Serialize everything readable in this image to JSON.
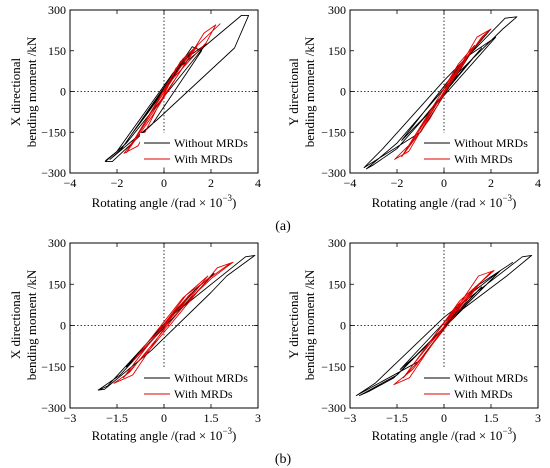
{
  "figure": {
    "panel_labels": [
      "(a)",
      "(b)"
    ]
  },
  "colors": {
    "without": "#000000",
    "with": "#e00000",
    "axis": "#000000"
  },
  "chart_data": [
    {
      "type": "line",
      "xlabel": "Rotating angle /(rad × 10",
      "xlabel_sup": "−3",
      "xlabel_close": ")",
      "ylabel_line1": "X directional",
      "ylabel_line2": "bending moment /kN",
      "xlim": [
        -4,
        4
      ],
      "ylim": [
        -300,
        300
      ],
      "xticks": [
        -4,
        -2,
        0,
        2,
        4
      ],
      "xtick_labels": [
        "−4",
        "−2",
        "0",
        "2",
        "4"
      ],
      "yticks": [
        -300,
        -150,
        0,
        150,
        300
      ],
      "ytick_labels": [
        "−300",
        "−150",
        "0",
        "150",
        "300"
      ],
      "legend_position": "bottom-right",
      "series": [
        {
          "name": "Without MRDs",
          "color": "#000000",
          "points": [
            [
              0,
              0
            ],
            [
              0.6,
              90
            ],
            [
              1.2,
              150
            ],
            [
              -0.7,
              -80
            ],
            [
              -1.4,
              -160
            ],
            [
              0.9,
              120
            ],
            [
              1.8,
              175
            ],
            [
              -1.6,
              -190
            ],
            [
              -2.5,
              -258
            ],
            [
              -2.2,
              -258
            ],
            [
              -0.5,
              -120
            ],
            [
              1.6,
              150
            ],
            [
              1.2,
              165
            ],
            [
              -1.8,
              -210
            ],
            [
              -2.3,
              -250
            ],
            [
              -0.3,
              -105
            ],
            [
              3.0,
              160
            ],
            [
              3.6,
              280
            ],
            [
              3.3,
              280
            ],
            [
              0.4,
              70
            ],
            [
              -2.0,
              -220
            ],
            [
              -2.5,
              -255
            ]
          ]
        },
        {
          "name": "With MRDs",
          "color": "#e00000",
          "points": [
            [
              0,
              0
            ],
            [
              0.5,
              85
            ],
            [
              1.0,
              130
            ],
            [
              -0.5,
              -70
            ],
            [
              -1.0,
              -140
            ],
            [
              0.7,
              110
            ],
            [
              1.4,
              165
            ],
            [
              -1.2,
              -170
            ],
            [
              -1.7,
              -228
            ],
            [
              -1.1,
              -200
            ],
            [
              0.3,
              40
            ],
            [
              1.8,
              180
            ],
            [
              2.2,
              245
            ],
            [
              1.7,
              215
            ],
            [
              -0.5,
              -90
            ],
            [
              -1.6,
              -225
            ],
            [
              0.8,
              120
            ],
            [
              2.4,
              250
            ]
          ]
        }
      ]
    },
    {
      "type": "line",
      "xlabel": "Rotating angle /(rad × 10",
      "xlabel_sup": "−3",
      "xlabel_close": ")",
      "ylabel_line1": "Y directional",
      "ylabel_line2": "bending moment /kN",
      "xlim": [
        -4,
        4
      ],
      "ylim": [
        -300,
        300
      ],
      "xticks": [
        -4,
        -2,
        0,
        2,
        4
      ],
      "xtick_labels": [
        "−4",
        "−2",
        "0",
        "2",
        "4"
      ],
      "yticks": [
        -300,
        -150,
        0,
        150,
        300
      ],
      "ytick_labels": [
        "−300",
        "−150",
        "0",
        "150",
        "300"
      ],
      "legend_position": "bottom-right",
      "series": [
        {
          "name": "Without MRDs",
          "color": "#000000",
          "points": [
            [
              0,
              0
            ],
            [
              0.8,
              80
            ],
            [
              1.6,
              160
            ],
            [
              -0.9,
              -100
            ],
            [
              -1.8,
              -180
            ],
            [
              1.0,
              130
            ],
            [
              2.2,
              200
            ],
            [
              -2.0,
              -210
            ],
            [
              -3.0,
              -270
            ],
            [
              -3.3,
              -285
            ],
            [
              -2.0,
              -190
            ],
            [
              0.5,
              60
            ],
            [
              2.5,
              230
            ],
            [
              3.1,
              275
            ],
            [
              2.6,
              270
            ],
            [
              0,
              40
            ],
            [
              -2.6,
              -210
            ],
            [
              -3.4,
              -280
            ],
            [
              -1.0,
              -150
            ],
            [
              1.2,
              150
            ],
            [
              2.0,
              230
            ]
          ]
        },
        {
          "name": "With MRDs",
          "color": "#e00000",
          "points": [
            [
              0,
              0
            ],
            [
              0.4,
              60
            ],
            [
              0.9,
              110
            ],
            [
              -0.5,
              -70
            ],
            [
              -1.1,
              -150
            ],
            [
              0.6,
              100
            ],
            [
              1.3,
              170
            ],
            [
              -1.4,
              -190
            ],
            [
              -2.1,
              -250
            ],
            [
              -1.5,
              -220
            ],
            [
              0.2,
              30
            ],
            [
              1.6,
              200
            ],
            [
              2.0,
              230
            ],
            [
              1.4,
              200
            ],
            [
              -0.6,
              -100
            ],
            [
              -1.8,
              -240
            ],
            [
              0.5,
              80
            ],
            [
              1.9,
              225
            ]
          ]
        }
      ]
    },
    {
      "type": "line",
      "xlabel": "Rotating angle /(rad × 10",
      "xlabel_sup": "−3",
      "xlabel_close": ")",
      "ylabel_line1": "X directional",
      "ylabel_line2": "bending moment /kN",
      "xlim": [
        -3,
        3
      ],
      "ylim": [
        -300,
        300
      ],
      "xticks": [
        -3,
        -1.5,
        0,
        1.5,
        3
      ],
      "xtick_labels": [
        "−3",
        "−1.5",
        "0",
        "1.5",
        "3"
      ],
      "yticks": [
        -300,
        -150,
        0,
        150,
        300
      ],
      "ytick_labels": [
        "−300",
        "−150",
        "0",
        "150",
        "300"
      ],
      "legend_position": "bottom-right",
      "series": [
        {
          "name": "Without MRDs",
          "color": "#000000",
          "points": [
            [
              0,
              0
            ],
            [
              0.5,
              70
            ],
            [
              1.0,
              130
            ],
            [
              -0.6,
              -80
            ],
            [
              -1.2,
              -150
            ],
            [
              0.8,
              110
            ],
            [
              1.6,
              190
            ],
            [
              -1.4,
              -180
            ],
            [
              -2.1,
              -235
            ],
            [
              -1.9,
              -232
            ],
            [
              -0.4,
              -90
            ],
            [
              1.5,
              120
            ],
            [
              2.0,
              180
            ],
            [
              2.9,
              255
            ],
            [
              2.6,
              250
            ],
            [
              0.3,
              40
            ],
            [
              -1.8,
              -220
            ],
            [
              -2.1,
              -236
            ]
          ]
        },
        {
          "name": "With MRDs",
          "color": "#e00000",
          "points": [
            [
              0,
              0
            ],
            [
              0.4,
              60
            ],
            [
              0.9,
              120
            ],
            [
              -0.5,
              -70
            ],
            [
              -1.0,
              -130
            ],
            [
              0.6,
              100
            ],
            [
              1.4,
              180
            ],
            [
              -1.1,
              -170
            ],
            [
              -1.6,
              -210
            ],
            [
              -1.0,
              -180
            ],
            [
              0.3,
              40
            ],
            [
              1.5,
              170
            ],
            [
              2.2,
              230
            ],
            [
              1.7,
              210
            ],
            [
              -0.4,
              -80
            ],
            [
              -1.3,
              -190
            ],
            [
              0.7,
              110
            ],
            [
              2.1,
              225
            ]
          ]
        }
      ]
    },
    {
      "type": "line",
      "xlabel": "Rotating angle /(rad × 10",
      "xlabel_sup": "−3",
      "xlabel_close": ")",
      "ylabel_line1": "Y directional",
      "ylabel_line2": "bending moment /kN",
      "xlim": [
        -3,
        3
      ],
      "ylim": [
        -300,
        300
      ],
      "xticks": [
        -3,
        -1.5,
        0,
        1.5,
        3
      ],
      "xtick_labels": [
        "−3",
        "−1.5",
        "0",
        "1.5",
        "3"
      ],
      "yticks": [
        -300,
        -150,
        0,
        150,
        300
      ],
      "ytick_labels": [
        "−300",
        "−150",
        "0",
        "150",
        "300"
      ],
      "legend_position": "bottom-right",
      "series": [
        {
          "name": "Without MRDs",
          "color": "#000000",
          "points": [
            [
              0,
              0
            ],
            [
              0.6,
              70
            ],
            [
              1.2,
              140
            ],
            [
              -0.7,
              -90
            ],
            [
              -1.4,
              -160
            ],
            [
              0.9,
              120
            ],
            [
              1.8,
              200
            ],
            [
              -1.6,
              -190
            ],
            [
              -2.4,
              -240
            ],
            [
              -2.7,
              -255
            ],
            [
              -1.5,
              -180
            ],
            [
              0.6,
              60
            ],
            [
              2.0,
              180
            ],
            [
              2.8,
              255
            ],
            [
              2.5,
              250
            ],
            [
              0,
              30
            ],
            [
              -2.2,
              -210
            ],
            [
              -2.8,
              -255
            ],
            [
              -0.8,
              -130
            ],
            [
              1.0,
              140
            ],
            [
              2.2,
              230
            ]
          ]
        },
        {
          "name": "With MRDs",
          "color": "#e00000",
          "points": [
            [
              0,
              0
            ],
            [
              0.3,
              50
            ],
            [
              0.8,
              110
            ],
            [
              -0.4,
              -60
            ],
            [
              -0.9,
              -130
            ],
            [
              0.5,
              90
            ],
            [
              1.2,
              160
            ],
            [
              -1.0,
              -160
            ],
            [
              -1.6,
              -215
            ],
            [
              -1.1,
              -190
            ],
            [
              0.2,
              30
            ],
            [
              1.2,
              160
            ],
            [
              1.6,
              200
            ],
            [
              1.1,
              180
            ],
            [
              -0.5,
              -90
            ],
            [
              -1.3,
              -190
            ],
            [
              0.4,
              70
            ],
            [
              1.5,
              195
            ]
          ]
        }
      ]
    }
  ]
}
